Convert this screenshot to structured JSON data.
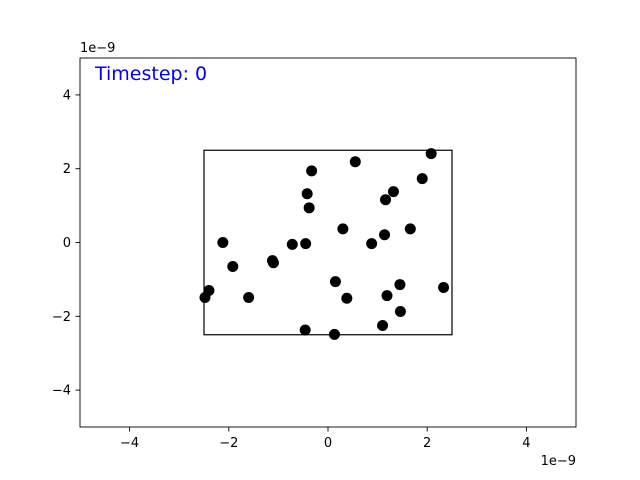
{
  "chart_data": {
    "type": "scatter",
    "title": "",
    "xlabel": "",
    "ylabel": "",
    "x_offset_label": "1e−9",
    "y_offset_label": "1e−9",
    "xlim": [
      -5,
      5
    ],
    "ylim": [
      -5,
      5
    ],
    "x_ticks": [
      -4,
      -2,
      0,
      2,
      4
    ],
    "y_ticks": [
      -4,
      -2,
      0,
      2,
      4
    ],
    "x_tick_labels": [
      "−4",
      "−2",
      "0",
      "2",
      "4"
    ],
    "y_tick_labels": [
      "−4",
      "−2",
      "0",
      "2",
      "4"
    ],
    "grid": false,
    "annotation": "Timestep: 0",
    "annotation_color": "#0000ff",
    "marker_color": "#000000",
    "box": {
      "x_min": -2.5,
      "x_max": 2.5,
      "y_min": -2.5,
      "y_max": 2.5
    },
    "points": [
      {
        "x": 2.08,
        "y": 2.41
      },
      {
        "x": 0.55,
        "y": 2.19
      },
      {
        "x": -0.33,
        "y": 1.94
      },
      {
        "x": 1.9,
        "y": 1.73
      },
      {
        "x": 1.32,
        "y": 1.38
      },
      {
        "x": -0.42,
        "y": 1.32
      },
      {
        "x": 1.16,
        "y": 1.16
      },
      {
        "x": -0.38,
        "y": 0.94
      },
      {
        "x": 0.3,
        "y": 0.37
      },
      {
        "x": 1.66,
        "y": 0.37
      },
      {
        "x": 1.14,
        "y": 0.21
      },
      {
        "x": -2.12,
        "y": 0.0
      },
      {
        "x": -0.72,
        "y": -0.05
      },
      {
        "x": -0.45,
        "y": -0.03
      },
      {
        "x": 0.88,
        "y": -0.03
      },
      {
        "x": -1.12,
        "y": -0.49
      },
      {
        "x": -1.1,
        "y": -0.55
      },
      {
        "x": -1.92,
        "y": -0.65
      },
      {
        "x": 0.15,
        "y": -1.06
      },
      {
        "x": 1.45,
        "y": -1.14
      },
      {
        "x": 2.33,
        "y": -1.22
      },
      {
        "x": -2.4,
        "y": -1.3
      },
      {
        "x": -2.48,
        "y": -1.49
      },
      {
        "x": -1.6,
        "y": -1.49
      },
      {
        "x": 0.38,
        "y": -1.51
      },
      {
        "x": 1.19,
        "y": -1.44
      },
      {
        "x": 1.46,
        "y": -1.87
      },
      {
        "x": 1.1,
        "y": -2.25
      },
      {
        "x": -0.46,
        "y": -2.37
      },
      {
        "x": 0.13,
        "y": -2.49
      }
    ]
  }
}
